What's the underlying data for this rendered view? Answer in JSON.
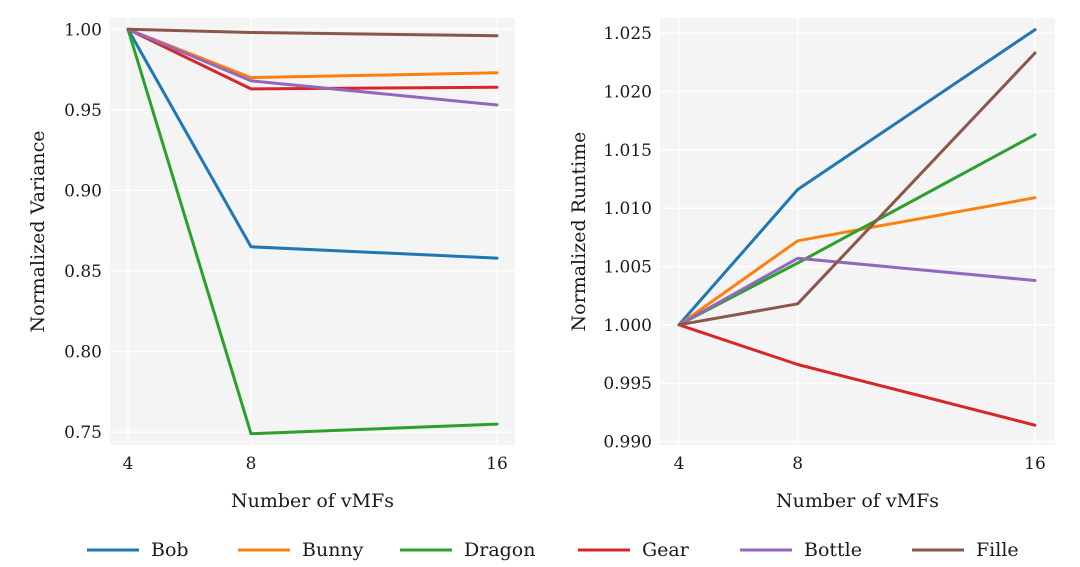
{
  "chart_data": [
    {
      "type": "line",
      "title": "",
      "xlabel": "Number of vMFs",
      "ylabel": "Normalized Variance",
      "x": [
        4,
        8,
        16
      ],
      "xticks": [
        "4",
        "8",
        "16"
      ],
      "ylim": [
        0.742,
        1.007
      ],
      "yticks": [
        "0.75",
        "0.80",
        "0.85",
        "0.90",
        "0.95",
        "1.00"
      ],
      "grid": true,
      "series": [
        {
          "name": "Bob",
          "values": [
            1.0,
            0.865,
            0.858
          ]
        },
        {
          "name": "Bunny",
          "values": [
            1.0,
            0.97,
            0.973
          ]
        },
        {
          "name": "Dragon",
          "values": [
            1.0,
            0.749,
            0.755
          ]
        },
        {
          "name": "Gear",
          "values": [
            1.0,
            0.963,
            0.964
          ]
        },
        {
          "name": "Bottle",
          "values": [
            1.0,
            0.968,
            0.953
          ]
        },
        {
          "name": "Fille",
          "values": [
            1.0,
            0.998,
            0.996
          ]
        }
      ]
    },
    {
      "type": "line",
      "title": "",
      "xlabel": "Number of vMFs",
      "ylabel": "Normalized Runtime",
      "x": [
        4,
        8,
        16
      ],
      "xticks": [
        "4",
        "8",
        "16"
      ],
      "ylim": [
        0.9897,
        1.0263
      ],
      "yticks": [
        "0.990",
        "0.995",
        "1.000",
        "1.005",
        "1.010",
        "1.015",
        "1.020",
        "1.025"
      ],
      "grid": true,
      "series": [
        {
          "name": "Bob",
          "values": [
            1.0,
            1.0116,
            1.0253
          ]
        },
        {
          "name": "Bunny",
          "values": [
            1.0,
            1.0072,
            1.0109
          ]
        },
        {
          "name": "Dragon",
          "values": [
            1.0,
            1.0053,
            1.0163
          ]
        },
        {
          "name": "Gear",
          "values": [
            1.0,
            0.9966,
            0.9914
          ]
        },
        {
          "name": "Bottle",
          "values": [
            1.0,
            1.0057,
            1.0038
          ]
        },
        {
          "name": "Fille",
          "values": [
            1.0,
            1.0018,
            1.0233
          ]
        }
      ]
    }
  ],
  "legend": {
    "position": "bottom",
    "items": [
      {
        "name": "Bob",
        "color": "#1f77b4"
      },
      {
        "name": "Bunny",
        "color": "#ff7f0e"
      },
      {
        "name": "Dragon",
        "color": "#2ca02c"
      },
      {
        "name": "Gear",
        "color": "#d62728"
      },
      {
        "name": "Bottle",
        "color": "#9467bd"
      },
      {
        "name": "Fille",
        "color": "#8c564b"
      }
    ]
  },
  "colors": {
    "plot_background": "#f4f4f4",
    "grid": "#ffffff"
  }
}
